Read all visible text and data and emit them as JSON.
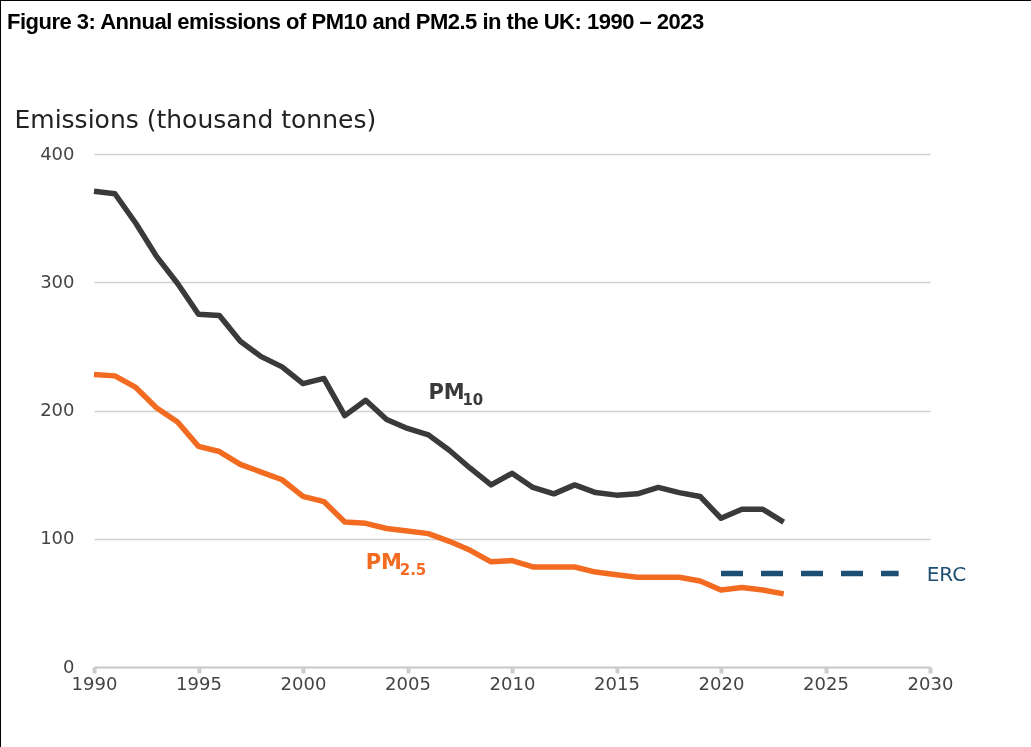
{
  "chart_data": {
    "type": "line",
    "title": "Figure 3: Annual emissions of PM10 and PM2.5 in the UK: 1990 – 2023",
    "ylabel": "Emissions (thousand tonnes)",
    "xlim": [
      1990,
      2030
    ],
    "xticks": [
      1990,
      1995,
      2000,
      2005,
      2010,
      2015,
      2020,
      2025,
      2030
    ],
    "ylim": [
      0,
      400
    ],
    "yticks": [
      0,
      100,
      200,
      300,
      400
    ],
    "grid": "y",
    "x": [
      1990,
      1991,
      1992,
      1993,
      1994,
      1995,
      1996,
      1997,
      1998,
      1999,
      2000,
      2001,
      2002,
      2003,
      2004,
      2005,
      2006,
      2007,
      2008,
      2009,
      2010,
      2011,
      2012,
      2013,
      2014,
      2015,
      2016,
      2017,
      2018,
      2019,
      2020,
      2021,
      2022,
      2023
    ],
    "series": [
      {
        "name": "PM$_{10}$",
        "color": "#3a3a3a",
        "values": [
          371,
          369,
          346,
          320,
          299,
          275,
          274,
          254,
          242,
          234,
          221,
          225,
          196,
          208,
          193,
          186,
          181,
          169,
          155,
          142,
          151,
          140,
          135,
          142,
          136,
          134,
          135,
          140,
          136,
          133,
          116,
          123,
          123,
          113
        ]
      },
      {
        "name": "PM$_{2.5}$",
        "color": "#f26b21",
        "values": [
          228,
          227,
          218,
          202,
          191,
          172,
          168,
          158,
          152,
          146,
          133,
          129,
          113,
          112,
          108,
          106,
          104,
          98,
          91,
          82,
          83,
          78,
          78,
          78,
          74,
          72,
          70,
          70,
          70,
          67,
          60,
          62,
          60,
          57
        ]
      },
      {
        "name": "ERC",
        "color": "#1d4f73",
        "line_style": "dashed",
        "x": [
          2020,
          2028.5
        ],
        "values": [
          73,
          73
        ]
      }
    ]
  }
}
